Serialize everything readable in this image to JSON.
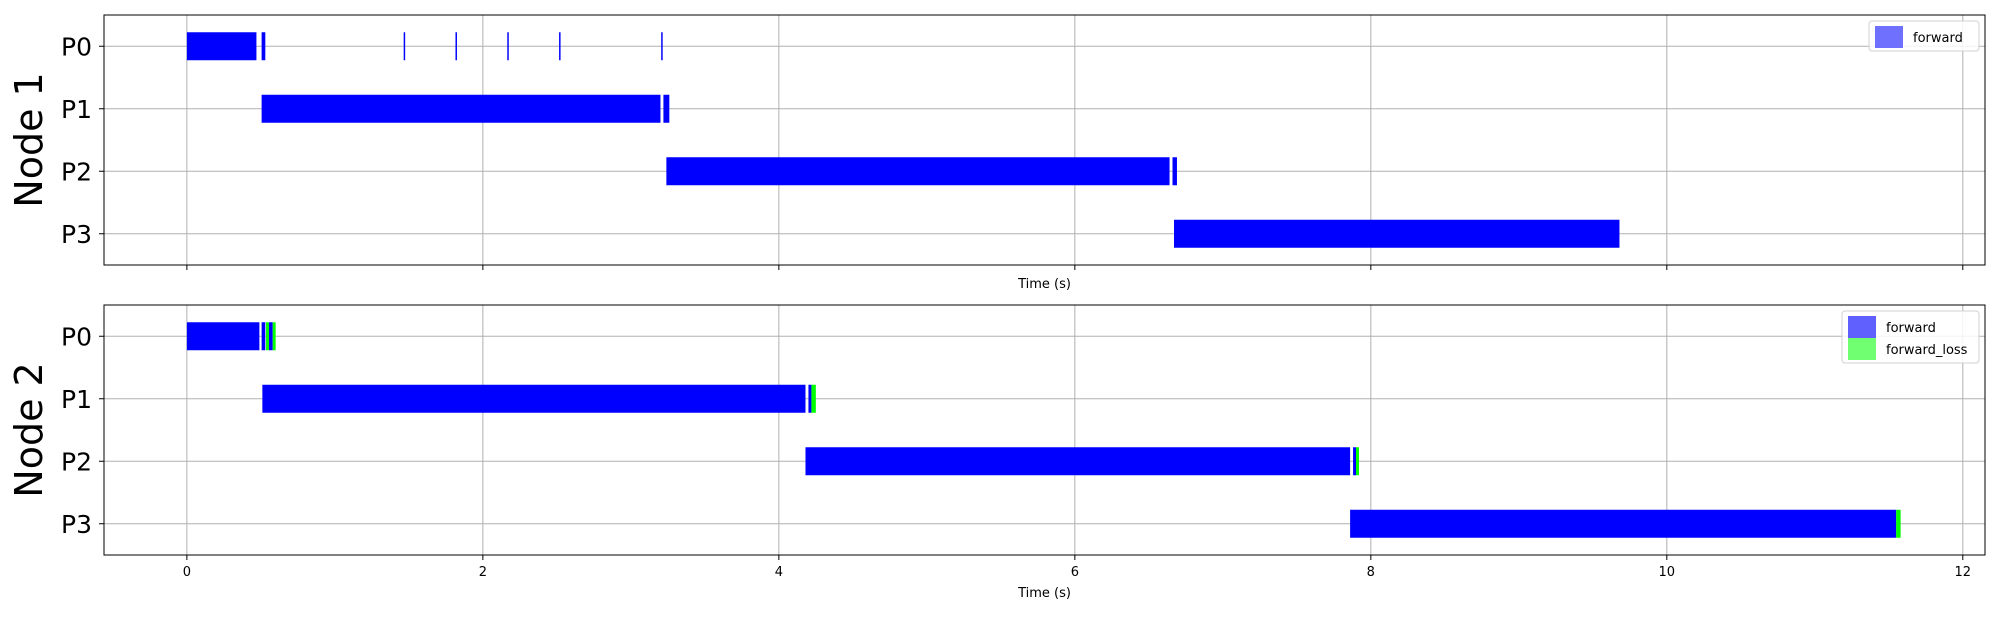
{
  "chart_data": [
    {
      "type": "gantt",
      "ylabel": "Node 1",
      "xlabel": "Time (s)",
      "xlim": [
        -0.56,
        12.15
      ],
      "xticks": [
        0,
        2,
        4,
        6,
        8,
        10,
        12
      ],
      "show_xtick_labels": false,
      "categories": [
        "P0",
        "P1",
        "P2",
        "P3"
      ],
      "grid": true,
      "legend": {
        "position": "upper-right",
        "entries": [
          {
            "label": "forward",
            "color": "#7070ff"
          }
        ]
      },
      "series": [
        {
          "name": "forward",
          "color": "#0000ff",
          "segments": [
            {
              "row": "P0",
              "start": 0.0,
              "end": 0.47
            },
            {
              "row": "P0",
              "start": 0.505,
              "end": 0.53
            },
            {
              "row": "P0",
              "start": 1.465,
              "end": 1.475
            },
            {
              "row": "P0",
              "start": 1.815,
              "end": 1.825
            },
            {
              "row": "P0",
              "start": 2.165,
              "end": 2.175
            },
            {
              "row": "P0",
              "start": 2.515,
              "end": 2.525
            },
            {
              "row": "P0",
              "start": 3.205,
              "end": 3.215
            },
            {
              "row": "P1",
              "start": 0.505,
              "end": 3.2
            },
            {
              "row": "P1",
              "start": 3.22,
              "end": 3.26
            },
            {
              "row": "P2",
              "start": 3.24,
              "end": 6.64
            },
            {
              "row": "P2",
              "start": 6.66,
              "end": 6.69
            },
            {
              "row": "P3",
              "start": 6.67,
              "end": 9.68
            }
          ]
        }
      ]
    },
    {
      "type": "gantt",
      "ylabel": "Node 2",
      "xlabel": "Time (s)",
      "xlim": [
        -0.56,
        12.15
      ],
      "xticks": [
        0,
        2,
        4,
        6,
        8,
        10,
        12
      ],
      "show_xtick_labels": true,
      "categories": [
        "P0",
        "P1",
        "P2",
        "P3"
      ],
      "grid": true,
      "legend": {
        "position": "upper-right",
        "entries": [
          {
            "label": "forward",
            "color": "#6060ff"
          },
          {
            "label": "forward_loss",
            "color": "#70ff70"
          }
        ]
      },
      "series": [
        {
          "name": "forward",
          "color": "#0000ff",
          "segments": [
            {
              "row": "P0",
              "start": 0.0,
              "end": 0.49
            },
            {
              "row": "P0",
              "start": 0.505,
              "end": 0.53
            },
            {
              "row": "P0",
              "start": 0.555,
              "end": 0.58
            },
            {
              "row": "P1",
              "start": 0.51,
              "end": 4.18
            },
            {
              "row": "P1",
              "start": 4.2,
              "end": 4.22
            },
            {
              "row": "P2",
              "start": 4.18,
              "end": 7.86
            },
            {
              "row": "P2",
              "start": 7.88,
              "end": 7.9
            },
            {
              "row": "P3",
              "start": 7.86,
              "end": 11.55
            }
          ]
        },
        {
          "name": "forward_loss",
          "color": "#00ff00",
          "segments": [
            {
              "row": "P0",
              "start": 0.535,
              "end": 0.555
            },
            {
              "row": "P0",
              "start": 0.58,
              "end": 0.6
            },
            {
              "row": "P1",
              "start": 4.22,
              "end": 4.25
            },
            {
              "row": "P2",
              "start": 7.9,
              "end": 7.92
            },
            {
              "row": "P3",
              "start": 11.55,
              "end": 11.58
            }
          ]
        }
      ]
    }
  ]
}
